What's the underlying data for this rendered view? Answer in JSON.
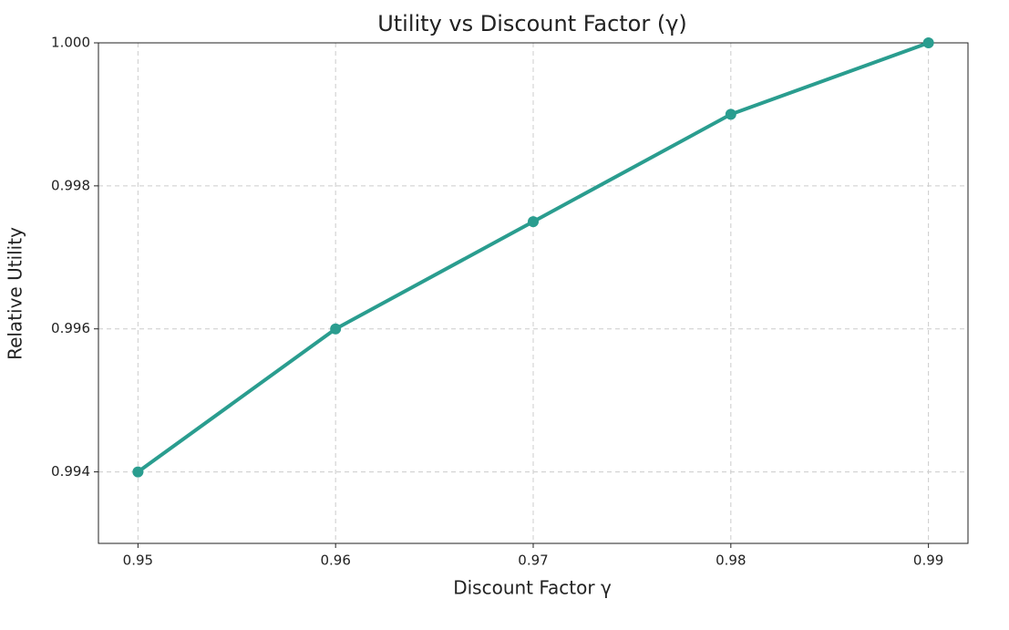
{
  "chart_data": {
    "type": "line",
    "title": "Utility vs Discount Factor (γ)",
    "x_label": "Discount Factor γ",
    "y_label": "Relative Utility",
    "x": [
      0.95,
      0.96,
      0.97,
      0.98,
      0.99
    ],
    "series": [
      {
        "name": "Relative Utility",
        "color": "#2a9d8f",
        "values": [
          0.994,
          0.996,
          0.9975,
          0.999,
          1.0
        ]
      }
    ],
    "xlim": [
      0.948,
      0.992
    ],
    "ylim": [
      0.993,
      1.0
    ],
    "xticks": [
      0.95,
      0.96,
      0.97,
      0.98,
      0.99
    ],
    "yticks": [
      0.994,
      0.996,
      0.998,
      {
        "value": 1.0,
        "label": "1.000"
      }
    ],
    "grid": true
  }
}
